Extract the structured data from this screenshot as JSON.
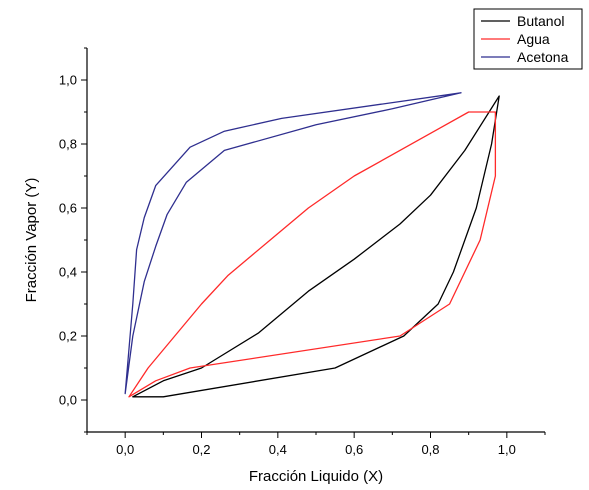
{
  "chart_data": {
    "type": "line",
    "title": "",
    "xlabel": "Fracción Liquido (X)",
    "ylabel": "Fracción Vapor (Y)",
    "xlim": [
      -0.1,
      1.1
    ],
    "ylim": [
      -0.1,
      1.1
    ],
    "x_ticks": [
      0.0,
      0.2,
      0.4,
      0.6,
      0.8,
      1.0
    ],
    "y_ticks": [
      0.0,
      0.2,
      0.4,
      0.6,
      0.8,
      1.0
    ],
    "x_tick_labels": [
      "0,0",
      "0,2",
      "0,4",
      "0,6",
      "0,8",
      "1,0"
    ],
    "y_tick_labels": [
      "0,0",
      "0,2",
      "0,4",
      "0,6",
      "0,8",
      "1,0"
    ],
    "grid": false,
    "legend_position": "top-right",
    "series": [
      {
        "name": "Butanol",
        "color": "#000000",
        "points": [
          [
            0.02,
            0.01
          ],
          [
            0.1,
            0.01
          ],
          [
            0.55,
            0.1
          ],
          [
            0.73,
            0.2
          ],
          [
            0.82,
            0.3
          ],
          [
            0.86,
            0.4
          ],
          [
            0.89,
            0.5
          ],
          [
            0.92,
            0.6
          ],
          [
            0.94,
            0.7
          ],
          [
            0.96,
            0.8
          ],
          [
            0.98,
            0.95
          ],
          [
            0.89,
            0.78
          ],
          [
            0.8,
            0.64
          ],
          [
            0.72,
            0.55
          ],
          [
            0.6,
            0.44
          ],
          [
            0.48,
            0.34
          ],
          [
            0.35,
            0.21
          ],
          [
            0.2,
            0.1
          ],
          [
            0.1,
            0.06
          ],
          [
            0.02,
            0.01
          ]
        ]
      },
      {
        "name": "Agua",
        "color": "#ff2a2a",
        "points": [
          [
            0.01,
            0.01
          ],
          [
            0.08,
            0.06
          ],
          [
            0.17,
            0.1
          ],
          [
            0.72,
            0.2
          ],
          [
            0.85,
            0.3
          ],
          [
            0.89,
            0.4
          ],
          [
            0.93,
            0.5
          ],
          [
            0.95,
            0.6
          ],
          [
            0.97,
            0.7
          ],
          [
            0.97,
            0.8
          ],
          [
            0.97,
            0.9
          ],
          [
            0.9,
            0.9
          ],
          [
            0.6,
            0.7
          ],
          [
            0.48,
            0.6
          ],
          [
            0.38,
            0.5
          ],
          [
            0.27,
            0.39
          ],
          [
            0.2,
            0.3
          ],
          [
            0.13,
            0.2
          ],
          [
            0.06,
            0.1
          ],
          [
            0.01,
            0.01
          ]
        ]
      },
      {
        "name": "Acetona",
        "color": "#2f2f8f",
        "points": [
          [
            0.0,
            0.02
          ],
          [
            0.02,
            0.3
          ],
          [
            0.03,
            0.47
          ],
          [
            0.05,
            0.57
          ],
          [
            0.08,
            0.67
          ],
          [
            0.17,
            0.79
          ],
          [
            0.26,
            0.84
          ],
          [
            0.41,
            0.88
          ],
          [
            0.88,
            0.96
          ],
          [
            0.7,
            0.91
          ],
          [
            0.5,
            0.86
          ],
          [
            0.26,
            0.78
          ],
          [
            0.16,
            0.68
          ],
          [
            0.11,
            0.58
          ],
          [
            0.08,
            0.48
          ],
          [
            0.05,
            0.37
          ],
          [
            0.02,
            0.2
          ],
          [
            0.0,
            0.02
          ]
        ]
      }
    ]
  }
}
